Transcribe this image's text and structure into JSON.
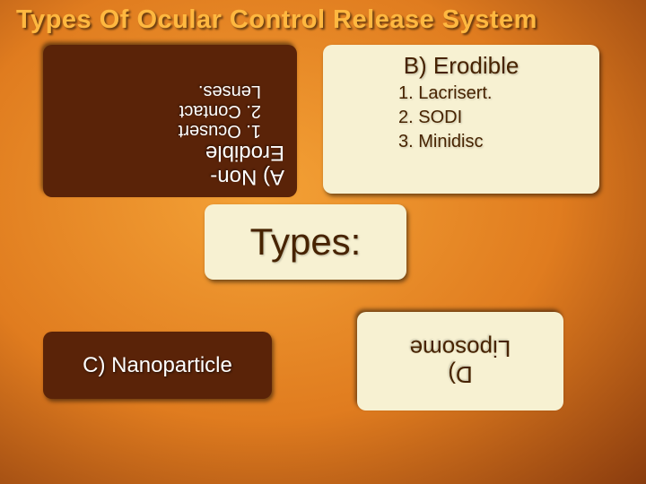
{
  "title": "Types Of Ocular Control Release System",
  "center": "Types:",
  "a": {
    "header_line1": "A) Non-",
    "header_line2": "Erodible",
    "item1": "1. Ocusert",
    "item2_line1": "2. Contact",
    "item2_line2": "Lenses."
  },
  "b": {
    "header": "B) Erodible",
    "item1": "1. Lacrisert.",
    "item2": "2. SODI",
    "item3": "3. Minidisc"
  },
  "c": {
    "label": "C) Nanoparticle"
  },
  "d": {
    "line1": "D)",
    "line2": "Liposome"
  }
}
